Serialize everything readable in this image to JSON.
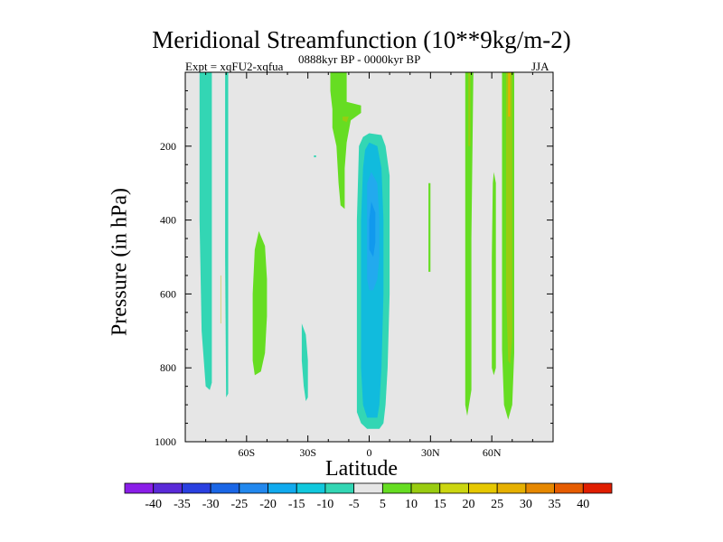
{
  "chart_data": {
    "type": "contour",
    "title": "Meridional Streamfunction (10**9kg/m-2)",
    "subtitle_left": "Expt = xqFU2-xqfua",
    "subtitle_center": "0888kyr BP - 0000kyr BP",
    "subtitle_right": "JJA",
    "xlabel": "Latitude",
    "ylabel": "Pressure (in hPa)",
    "xlim": [
      -90,
      90
    ],
    "ylim": [
      1000,
      0
    ],
    "x_ticks": [
      {
        "value": -60,
        "label": "60S"
      },
      {
        "value": -30,
        "label": "30S"
      },
      {
        "value": 0,
        "label": "0"
      },
      {
        "value": 30,
        "label": "30N"
      },
      {
        "value": 60,
        "label": "60N"
      }
    ],
    "y_ticks": [
      {
        "value": 200,
        "label": "200"
      },
      {
        "value": 400,
        "label": "400"
      },
      {
        "value": 600,
        "label": "600"
      },
      {
        "value": 800,
        "label": "800"
      },
      {
        "value": 1000,
        "label": "1000"
      }
    ],
    "background_color": "#e6e6e6",
    "regions": [
      {
        "name": "sh-polar-band",
        "color": "#33d6b4",
        "level": -7.5,
        "points": [
          [
            -83,
            0
          ],
          [
            -77,
            0
          ],
          [
            -77,
            840
          ],
          [
            -78,
            860
          ],
          [
            -80,
            850
          ],
          [
            -82,
            700
          ],
          [
            -83,
            400
          ]
        ]
      },
      {
        "name": "sh-thin-band",
        "color": "#33d6b4",
        "level": -7.5,
        "points": [
          [
            -70.5,
            0
          ],
          [
            -69,
            0
          ],
          [
            -69,
            870
          ],
          [
            -70,
            880
          ],
          [
            -70.5,
            500
          ]
        ]
      },
      {
        "name": "sh-thin-green-line",
        "color": "#d6d68c",
        "level": 2.5,
        "points": [
          [
            -72.8,
            550
          ],
          [
            -72.3,
            550
          ],
          [
            -72.3,
            680
          ],
          [
            -72.8,
            680
          ]
        ]
      },
      {
        "name": "sh-midlat-positive",
        "color": "#66dd22",
        "level": 7.5,
        "points": [
          [
            -54,
            430
          ],
          [
            -51,
            470
          ],
          [
            -50,
            560
          ],
          [
            -50,
            660
          ],
          [
            -51,
            760
          ],
          [
            -53,
            810
          ],
          [
            -56,
            820
          ],
          [
            -57,
            780
          ],
          [
            -57,
            600
          ],
          [
            -56,
            480
          ]
        ]
      },
      {
        "name": "sh-subtropic-negative",
        "color": "#33d6b4",
        "level": -7.5,
        "points": [
          [
            -33,
            680
          ],
          [
            -31,
            710
          ],
          [
            -30,
            780
          ],
          [
            -30,
            880
          ],
          [
            -31,
            890
          ],
          [
            -32,
            850
          ],
          [
            -33,
            780
          ]
        ]
      },
      {
        "name": "tropical-upper-positive",
        "color": "#66dd22",
        "level": 7.5,
        "points": [
          [
            -19,
            0
          ],
          [
            -11,
            0
          ],
          [
            -11,
            80
          ],
          [
            -4,
            90
          ],
          [
            -4,
            110
          ],
          [
            -9,
            130
          ],
          [
            -11,
            190
          ],
          [
            -12,
            260
          ],
          [
            -12,
            370
          ],
          [
            -14,
            360
          ],
          [
            -15,
            300
          ],
          [
            -16,
            200
          ],
          [
            -18,
            150
          ],
          [
            -18,
            100
          ],
          [
            -19,
            50
          ]
        ]
      },
      {
        "name": "tropical-upper-inner",
        "color": "#99cc11",
        "level": 12.5,
        "points": [
          [
            -13,
            120
          ],
          [
            -10,
            120
          ],
          [
            -11,
            135
          ],
          [
            -13,
            130
          ]
        ]
      },
      {
        "name": "tropical-speck",
        "color": "#33d6b4",
        "level": -7.5,
        "points": [
          [
            -27,
            225
          ],
          [
            -26,
            225
          ],
          [
            -26,
            230
          ],
          [
            -27,
            230
          ]
        ]
      },
      {
        "name": "hadley-negative-outer",
        "color": "#33d6b4",
        "level": -7.5,
        "points": [
          [
            0,
            165
          ],
          [
            6,
            170
          ],
          [
            8,
            200
          ],
          [
            10,
            280
          ],
          [
            10,
            400
          ],
          [
            10,
            600
          ],
          [
            9,
            800
          ],
          [
            8,
            900
          ],
          [
            7,
            950
          ],
          [
            5,
            965
          ],
          [
            -1,
            965
          ],
          [
            -4,
            950
          ],
          [
            -6,
            920
          ],
          [
            -6,
            800
          ],
          [
            -6,
            600
          ],
          [
            -6,
            400
          ],
          [
            -5,
            200
          ],
          [
            -3,
            175
          ]
        ]
      },
      {
        "name": "hadley-negative-mid",
        "color": "#11bbdd",
        "level": -12.5,
        "points": [
          [
            0,
            190
          ],
          [
            4,
            200
          ],
          [
            6,
            260
          ],
          [
            7,
            400
          ],
          [
            7,
            600
          ],
          [
            6,
            800
          ],
          [
            5,
            900
          ],
          [
            4,
            935
          ],
          [
            -1,
            935
          ],
          [
            -3,
            900
          ],
          [
            -4,
            800
          ],
          [
            -4,
            600
          ],
          [
            -4,
            400
          ],
          [
            -3,
            260
          ],
          [
            -2,
            210
          ]
        ]
      },
      {
        "name": "hadley-negative-core",
        "color": "#22aaee",
        "level": -17.5,
        "points": [
          [
            1,
            270
          ],
          [
            4,
            300
          ],
          [
            5,
            400
          ],
          [
            5,
            500
          ],
          [
            4,
            560
          ],
          [
            2,
            590
          ],
          [
            0,
            590
          ],
          [
            -1,
            560
          ],
          [
            -1,
            400
          ],
          [
            -1,
            300
          ]
        ]
      },
      {
        "name": "hadley-negative-inner",
        "color": "#1199ee",
        "level": -22.5,
        "points": [
          [
            1,
            350
          ],
          [
            3,
            380
          ],
          [
            3,
            460
          ],
          [
            2,
            500
          ],
          [
            0,
            480
          ],
          [
            0,
            400
          ]
        ]
      },
      {
        "name": "nh-subtropic-positive",
        "color": "#66dd22",
        "level": 7.5,
        "points": [
          [
            29,
            300
          ],
          [
            30,
            300
          ],
          [
            30,
            540
          ],
          [
            29,
            540
          ]
        ]
      },
      {
        "name": "nh-midlat-band",
        "color": "#66dd22",
        "level": 7.5,
        "points": [
          [
            47,
            0
          ],
          [
            51,
            0
          ],
          [
            50,
            450
          ],
          [
            50,
            860
          ],
          [
            48,
            930
          ],
          [
            47,
            900
          ],
          [
            47,
            700
          ],
          [
            47,
            400
          ]
        ]
      },
      {
        "name": "nh-midlat-inner",
        "color": "#99cc11",
        "level": 12.5,
        "points": [
          [
            48.5,
            0
          ],
          [
            49.5,
            0
          ],
          [
            49.5,
            200
          ],
          [
            48.5,
            200
          ]
        ]
      },
      {
        "name": "nh-60n-band",
        "color": "#66dd22",
        "level": 7.5,
        "points": [
          [
            61,
            270
          ],
          [
            62,
            300
          ],
          [
            62,
            700
          ],
          [
            62,
            800
          ],
          [
            61,
            820
          ],
          [
            60,
            800
          ],
          [
            60,
            500
          ],
          [
            60.5,
            300
          ]
        ]
      },
      {
        "name": "nh-polar-band",
        "color": "#66dd22",
        "level": 7.5,
        "points": [
          [
            65,
            0
          ],
          [
            71,
            0
          ],
          [
            71,
            760
          ],
          [
            70,
            900
          ],
          [
            68,
            940
          ],
          [
            66,
            900
          ],
          [
            65,
            750
          ],
          [
            65,
            400
          ]
        ]
      },
      {
        "name": "nh-polar-inner",
        "color": "#99cc11",
        "level": 12.5,
        "points": [
          [
            67,
            0
          ],
          [
            70,
            0
          ],
          [
            70,
            720
          ],
          [
            69,
            790
          ],
          [
            68,
            780
          ],
          [
            67,
            600
          ]
        ]
      },
      {
        "name": "nh-polar-inner-dark",
        "color": "#e6b000",
        "level": 17.5,
        "points": [
          [
            68,
            0
          ],
          [
            69,
            0
          ],
          [
            69,
            120
          ],
          [
            68,
            120
          ]
        ]
      }
    ],
    "colorbar": {
      "levels": [
        "-40",
        "-35",
        "-30",
        "-25",
        "-20",
        "-15",
        "-10",
        "-5",
        "5",
        "10",
        "15",
        "20",
        "25",
        "30",
        "35",
        "40"
      ],
      "colors": [
        "#8a1ee8",
        "#5a2ad8",
        "#2a40e0",
        "#1a66e6",
        "#2288ee",
        "#11aaee",
        "#11c8dd",
        "#33d6b4",
        "#e6e6e6",
        "#66dd22",
        "#99cc11",
        "#ccd611",
        "#e6c800",
        "#e6b000",
        "#e68800",
        "#e65c00",
        "#e01e00"
      ]
    }
  }
}
